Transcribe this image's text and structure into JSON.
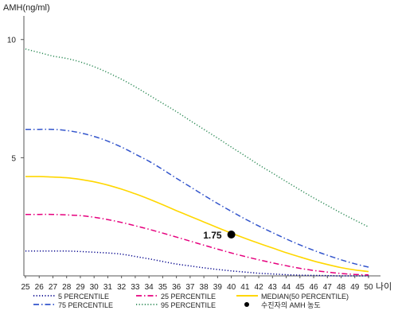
{
  "chart_data": {
    "type": "line",
    "ylabel": "AMH(ng/ml)",
    "xlabel": "나이",
    "x": [
      25,
      26,
      27,
      28,
      29,
      30,
      31,
      32,
      33,
      34,
      35,
      36,
      37,
      38,
      39,
      40,
      41,
      42,
      43,
      44,
      45,
      46,
      47,
      48,
      49,
      50
    ],
    "xlim": [
      25,
      50
    ],
    "ylim": [
      0,
      11
    ],
    "yticks": [
      5,
      10
    ],
    "grid": false,
    "legend_position": "bottom",
    "series": [
      {
        "name": "5 PERCENTILE",
        "color": "#00008b",
        "style": "dotted",
        "values": [
          1.05,
          1.05,
          1.05,
          1.05,
          1.03,
          1.0,
          0.97,
          0.92,
          0.82,
          0.72,
          0.61,
          0.5,
          0.42,
          0.34,
          0.27,
          0.21,
          0.16,
          0.11,
          0.08,
          0.05,
          0.03,
          0.02,
          0.01,
          0.0,
          0.0,
          0.0
        ]
      },
      {
        "name": "25 PERCENTILE",
        "color": "#e6007e",
        "style": "dashdot",
        "values": [
          2.6,
          2.6,
          2.6,
          2.58,
          2.55,
          2.48,
          2.38,
          2.26,
          2.12,
          1.97,
          1.81,
          1.64,
          1.47,
          1.3,
          1.13,
          0.97,
          0.82,
          0.68,
          0.55,
          0.43,
          0.32,
          0.23,
          0.16,
          0.1,
          0.06,
          0.04
        ]
      },
      {
        "name": "MEDIAN(50 PERCENTILE)",
        "color": "#ffd700",
        "style": "solid",
        "values": [
          4.2,
          4.2,
          4.18,
          4.15,
          4.08,
          3.98,
          3.84,
          3.67,
          3.47,
          3.25,
          3.01,
          2.76,
          2.52,
          2.28,
          2.04,
          1.81,
          1.59,
          1.38,
          1.18,
          0.98,
          0.8,
          0.63,
          0.48,
          0.35,
          0.25,
          0.18
        ]
      },
      {
        "name": "75 PERCENTILE",
        "color": "#3355cc",
        "style": "dashdot",
        "values": [
          6.2,
          6.2,
          6.2,
          6.15,
          6.05,
          5.9,
          5.7,
          5.45,
          5.15,
          4.85,
          4.5,
          4.13,
          3.77,
          3.41,
          3.06,
          2.73,
          2.41,
          2.11,
          1.83,
          1.56,
          1.31,
          1.08,
          0.87,
          0.68,
          0.51,
          0.37
        ]
      },
      {
        "name": "95 PERCENTILE",
        "color": "#2e8b57",
        "style": "dotted",
        "values": [
          9.6,
          9.45,
          9.3,
          9.2,
          9.05,
          8.85,
          8.6,
          8.32,
          8.0,
          7.65,
          7.3,
          6.95,
          6.57,
          6.2,
          5.83,
          5.45,
          5.08,
          4.7,
          4.35,
          3.99,
          3.64,
          3.3,
          2.98,
          2.66,
          2.36,
          2.07
        ]
      }
    ],
    "marker": {
      "label": "수진자의 AMH 농도",
      "x": 40,
      "y": 1.75,
      "value_label": "1.75",
      "color": "#000000"
    },
    "legend_order": [
      "5 PERCENTILE",
      "25 PERCENTILE",
      "MEDIAN(50 PERCENTILE)",
      "75 PERCENTILE",
      "95 PERCENTILE",
      "수진자의 AMH 농도"
    ]
  }
}
